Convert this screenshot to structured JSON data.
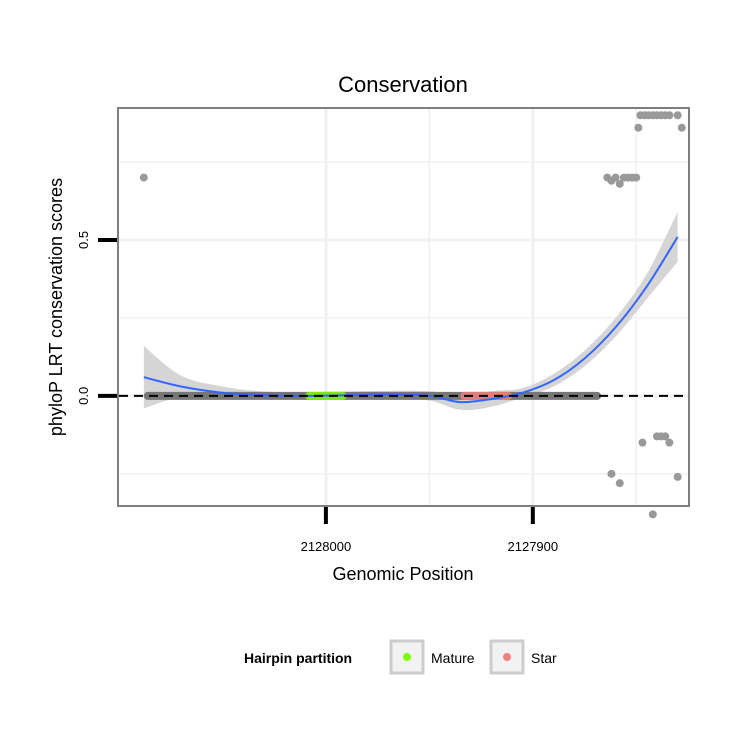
{
  "chart_data": {
    "type": "scatter",
    "title": "Conservation",
    "xlabel": "Genomic Position",
    "ylabel": "phyloP LRT conservation scores",
    "x_reversed": true,
    "xlim": [
      2128100,
      2127825
    ],
    "ylim": [
      -0.35,
      0.92
    ],
    "x_ticks": [
      2128000,
      2127900
    ],
    "x_tick_labels": [
      "2128000",
      "2127900"
    ],
    "y_ticks": [
      0.0,
      0.5
    ],
    "y_tick_labels": [
      "0.0",
      "0.5"
    ],
    "grid": true,
    "reference_line": {
      "y": 0,
      "style": "dashed"
    },
    "points": [
      {
        "x": 2128088,
        "y": 0.7
      },
      {
        "x": 2127864,
        "y": 0.7
      },
      {
        "x": 2127862,
        "y": 0.69
      },
      {
        "x": 2127860,
        "y": 0.7
      },
      {
        "x": 2127858,
        "y": 0.68
      },
      {
        "x": 2127856,
        "y": 0.7
      },
      {
        "x": 2127854,
        "y": 0.7
      },
      {
        "x": 2127852,
        "y": 0.7
      },
      {
        "x": 2127850,
        "y": 0.7
      },
      {
        "x": 2127849,
        "y": 0.86
      },
      {
        "x": 2127848,
        "y": 0.9
      },
      {
        "x": 2127846,
        "y": 0.9
      },
      {
        "x": 2127844,
        "y": 0.9
      },
      {
        "x": 2127842,
        "y": 0.9
      },
      {
        "x": 2127840,
        "y": 0.9
      },
      {
        "x": 2127838,
        "y": 0.9
      },
      {
        "x": 2127836,
        "y": 0.9
      },
      {
        "x": 2127834,
        "y": 0.9
      },
      {
        "x": 2127830,
        "y": 0.9
      },
      {
        "x": 2127828,
        "y": 0.86
      },
      {
        "x": 2127862,
        "y": -0.25
      },
      {
        "x": 2127858,
        "y": -0.28
      },
      {
        "x": 2127847,
        "y": -0.15
      },
      {
        "x": 2127842,
        "y": -0.38
      },
      {
        "x": 2127840,
        "y": -0.13
      },
      {
        "x": 2127838,
        "y": -0.13
      },
      {
        "x": 2127836,
        "y": -0.13
      },
      {
        "x": 2127834,
        "y": -0.15
      },
      {
        "x": 2127830,
        "y": -0.26
      }
    ],
    "zero_band": {
      "x_start": 2128088,
      "x_end": 2127867,
      "y": 0
    },
    "smooth": {
      "x": [
        2128088,
        2128070,
        2128050,
        2128030,
        2128010,
        2127990,
        2127970,
        2127950,
        2127935,
        2127920,
        2127905,
        2127890,
        2127875,
        2127860,
        2127845,
        2127830
      ],
      "y": [
        0.06,
        0.03,
        0.01,
        0.002,
        0.0,
        0.002,
        0.004,
        0.0,
        -0.02,
        -0.01,
        0.01,
        0.05,
        0.12,
        0.22,
        0.35,
        0.51
      ],
      "lower": [
        -0.04,
        -0.005,
        -0.01,
        -0.01,
        -0.012,
        -0.01,
        -0.008,
        -0.015,
        -0.045,
        -0.035,
        -0.005,
        0.03,
        0.095,
        0.19,
        0.31,
        0.43
      ],
      "upper": [
        0.16,
        0.065,
        0.03,
        0.014,
        0.012,
        0.014,
        0.016,
        0.015,
        0.005,
        0.015,
        0.025,
        0.07,
        0.145,
        0.25,
        0.39,
        0.59
      ]
    },
    "highlights": [
      {
        "name": "Mature",
        "x_start": 2128010,
        "x_end": 2127990,
        "color": "#7CFC00"
      },
      {
        "name": "Star",
        "x_start": 2127935,
        "x_end": 2127910,
        "color": "#F08080"
      }
    ],
    "legend": {
      "title": "Hairpin partition",
      "position": "bottom",
      "entries": [
        {
          "label": "Mature",
          "color": "#7CFC00"
        },
        {
          "label": "Star",
          "color": "#F08080"
        }
      ]
    },
    "colors": {
      "point": "#999999",
      "smooth_line": "#3366FF",
      "ribbon": "#d3d3d3",
      "zero_band": "#777777",
      "panel_border": "#7f7f7f",
      "grid": "#f0f0f0"
    }
  }
}
